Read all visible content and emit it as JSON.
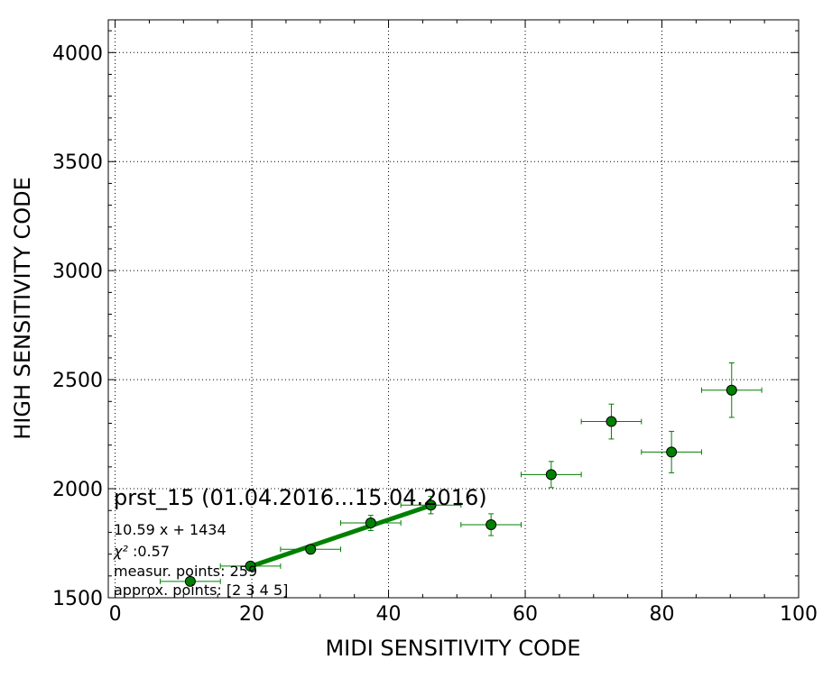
{
  "chart_data": {
    "type": "scatter",
    "xlabel": "MIDI SENSITIVITY CODE",
    "ylabel": "HIGH SENSITIVITY CODE",
    "xlim": [
      -1,
      100
    ],
    "ylim": [
      1500,
      4150
    ],
    "xticks": [
      0,
      20,
      40,
      60,
      80,
      100
    ],
    "yticks": [
      1500,
      2000,
      2500,
      3000,
      3500,
      4000
    ],
    "grid": true,
    "marker_color": "#008000",
    "line_color": "#008000",
    "points": [
      {
        "x": 11.0,
        "y": 1575,
        "xerr": 4.4,
        "yerr": 10
      },
      {
        "x": 19.8,
        "y": 1645,
        "xerr": 4.4,
        "yerr": 10
      },
      {
        "x": 28.6,
        "y": 1722,
        "xerr": 4.4,
        "yerr": 15
      },
      {
        "x": 37.4,
        "y": 1843,
        "xerr": 4.4,
        "yerr": 35
      },
      {
        "x": 46.2,
        "y": 1925,
        "xerr": 4.4,
        "yerr": 40
      },
      {
        "x": 55.0,
        "y": 1835,
        "xerr": 4.4,
        "yerr": 50
      },
      {
        "x": 63.8,
        "y": 2065,
        "xerr": 4.4,
        "yerr": 60
      },
      {
        "x": 72.6,
        "y": 2308,
        "xerr": 4.4,
        "yerr": 80
      },
      {
        "x": 81.4,
        "y": 2168,
        "xerr": 4.4,
        "yerr": 95
      },
      {
        "x": 90.2,
        "y": 2452,
        "xerr": 4.4,
        "yerr": 125
      }
    ],
    "fit_line": {
      "slope": 10.59,
      "intercept": 1434,
      "x_range": [
        19.8,
        46.2
      ]
    },
    "annotations": {
      "title": "prst_15 (01.04.2016...15.04.2016)",
      "equation": "10.59 x + 1434",
      "chi2_symbol": "χ²",
      "chi2_value": " :0.57",
      "measur_points": "measur. points: 259",
      "approx_points": "approx. points: [2 3 4 5]"
    }
  }
}
